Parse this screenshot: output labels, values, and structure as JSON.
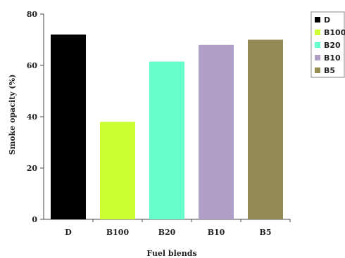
{
  "chart_data": {
    "type": "bar",
    "categories": [
      "D",
      "B100",
      "B20",
      "B10",
      "B5"
    ],
    "values": [
      72,
      38,
      61.5,
      68,
      70
    ],
    "colors": [
      "#000000",
      "#ccff33",
      "#66ffcc",
      "#b0a0c8",
      "#948a54"
    ],
    "title": "",
    "xlabel": "Fuel blends",
    "ylabel": "Smoke opacity (%)",
    "ylim": [
      0,
      80
    ],
    "yticks": [
      "0",
      "20",
      "40",
      "60",
      "80"
    ],
    "grid": false,
    "legend_position": "top-right",
    "legend": [
      "D",
      "B100",
      "B20",
      "B10",
      "B5"
    ]
  }
}
